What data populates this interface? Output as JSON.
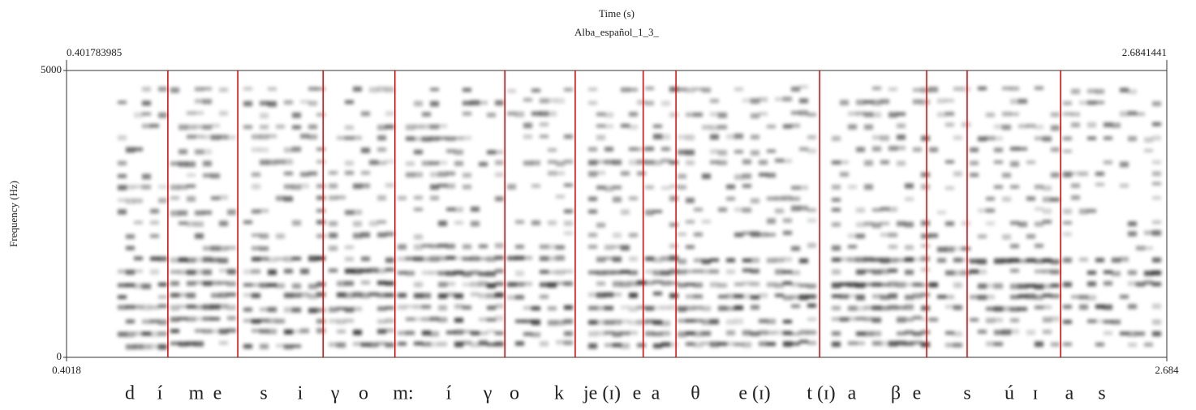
{
  "chart_data": {
    "type": "spectrogram",
    "title": "Time (s)",
    "subtitle": "Alba_español_1_3_",
    "y_label": "Frequency (Hz)",
    "xlim": [
      0.401783985,
      2.6841441
    ],
    "xticks": [
      {
        "value": 0.401783985,
        "label": "0.4018"
      },
      {
        "value": 2.6841441,
        "label": "2.684"
      }
    ],
    "ylim": [
      0,
      5000
    ],
    "yticks": [
      0,
      5000
    ],
    "boundaries": [
      0.612,
      0.757,
      0.934,
      1.083,
      1.311,
      1.457,
      1.598,
      1.666,
      1.964,
      2.186,
      2.27,
      2.464
    ],
    "boundary_color": "#e00000",
    "segments": [
      "d",
      "í",
      "m",
      "e",
      "s",
      "i",
      "γ",
      "o",
      "m:",
      "í",
      "γ",
      "o",
      "k",
      "je (ɪ)",
      "e",
      "a",
      "θ",
      "e (ɪ)",
      "t (ɪ)",
      "a",
      "β",
      "e",
      "s",
      "ú",
      "ɪ",
      "a",
      "s"
    ]
  }
}
